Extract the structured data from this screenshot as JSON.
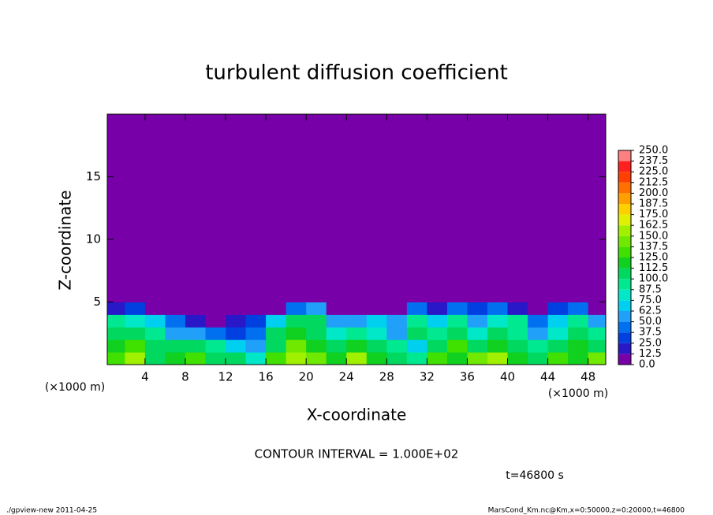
{
  "chart_data": {
    "type": "heatmap",
    "title": "turbulent diffusion coefficient",
    "x_label": "X-coordinate",
    "y_label": "Z-coordinate",
    "x_unit": "(×1000 m)",
    "y_unit": "(×1000 m)",
    "note": "CONTOUR INTERVAL = 1.000E+02",
    "time_label": "t=46800 s",
    "footer_left": "./gpview-new  2011-04-25",
    "footer_right": "MarsCond_Km.nc@Km,x=0:50000,z=0:20000,t=46800",
    "xlim": [
      0.25,
      49.75
    ],
    "ylim": [
      0,
      20
    ],
    "xticks": [
      4,
      8,
      12,
      16,
      20,
      24,
      28,
      32,
      36,
      40,
      44,
      48
    ],
    "yticks": [
      5,
      10,
      15
    ],
    "x_edges": [
      0,
      2,
      4,
      6,
      8,
      10,
      12,
      14,
      16,
      18,
      20,
      22,
      24,
      26,
      28,
      30,
      32,
      34,
      36,
      38,
      40,
      42,
      44,
      46,
      48,
      50
    ],
    "z_edges": [
      0,
      1,
      2,
      3,
      4,
      5,
      20
    ],
    "values": [
      [
        130,
        150,
        110,
        120,
        130,
        110,
        100,
        80,
        130,
        160,
        140,
        120,
        150,
        120,
        110,
        90,
        130,
        120,
        140,
        150,
        120,
        110,
        130,
        120,
        140
      ],
      [
        120,
        130,
        110,
        100,
        110,
        90,
        70,
        60,
        110,
        140,
        120,
        100,
        120,
        110,
        90,
        70,
        110,
        130,
        100,
        120,
        110,
        90,
        100,
        120,
        110
      ],
      [
        110,
        100,
        90,
        60,
        50,
        40,
        30,
        40,
        100,
        120,
        110,
        80,
        90,
        80,
        60,
        110,
        90,
        110,
        80,
        100,
        90,
        60,
        80,
        100,
        90
      ],
      [
        90,
        80,
        70,
        40,
        20,
        10,
        20,
        30,
        70,
        110,
        100,
        60,
        60,
        70,
        50,
        90,
        70,
        90,
        60,
        80,
        90,
        40,
        70,
        90,
        60
      ],
      [
        20,
        30,
        10,
        5,
        5,
        0,
        0,
        0,
        10,
        40,
        60,
        10,
        5,
        10,
        10,
        40,
        20,
        40,
        30,
        40,
        20,
        5,
        30,
        40,
        10
      ],
      [
        0,
        0,
        0,
        0,
        0,
        0,
        0,
        0,
        0,
        0,
        0,
        0,
        0,
        0,
        0,
        0,
        0,
        0,
        0,
        0,
        0,
        0,
        0,
        0,
        0
      ]
    ],
    "levels": [
      {
        "value": 0,
        "label": "0.0"
      },
      {
        "value": 12.5,
        "label": "12.5"
      },
      {
        "value": 25,
        "label": "25.0"
      },
      {
        "value": 37.5,
        "label": "37.5"
      },
      {
        "value": 50,
        "label": "50.0"
      },
      {
        "value": 62.5,
        "label": "62.5"
      },
      {
        "value": 75,
        "label": "75.0"
      },
      {
        "value": 87.5,
        "label": "87.5"
      },
      {
        "value": 100,
        "label": "100.0"
      },
      {
        "value": 112.5,
        "label": "112.5"
      },
      {
        "value": 125,
        "label": "125.0"
      },
      {
        "value": 137.5,
        "label": "137.5"
      },
      {
        "value": 150,
        "label": "150.0"
      },
      {
        "value": 162.5,
        "label": "162.5"
      },
      {
        "value": 175,
        "label": "175.0"
      },
      {
        "value": 187.5,
        "label": "187.5"
      },
      {
        "value": 200,
        "label": "200.0"
      },
      {
        "value": 212.5,
        "label": "212.5"
      },
      {
        "value": 225,
        "label": "225.0"
      },
      {
        "value": 237.5,
        "label": "237.5"
      },
      {
        "value": 250,
        "label": "250.0"
      }
    ],
    "colors": [
      "#7800a8",
      "#2818c8",
      "#0040e0",
      "#0070f0",
      "#20a0f8",
      "#00d0f0",
      "#00e8c8",
      "#00e890",
      "#00d860",
      "#10d020",
      "#40e000",
      "#70e800",
      "#a0f000",
      "#e0f000",
      "#ffd000",
      "#ffa000",
      "#ff7000",
      "#ff4000",
      "#ff2020",
      "#ff8080"
    ]
  }
}
